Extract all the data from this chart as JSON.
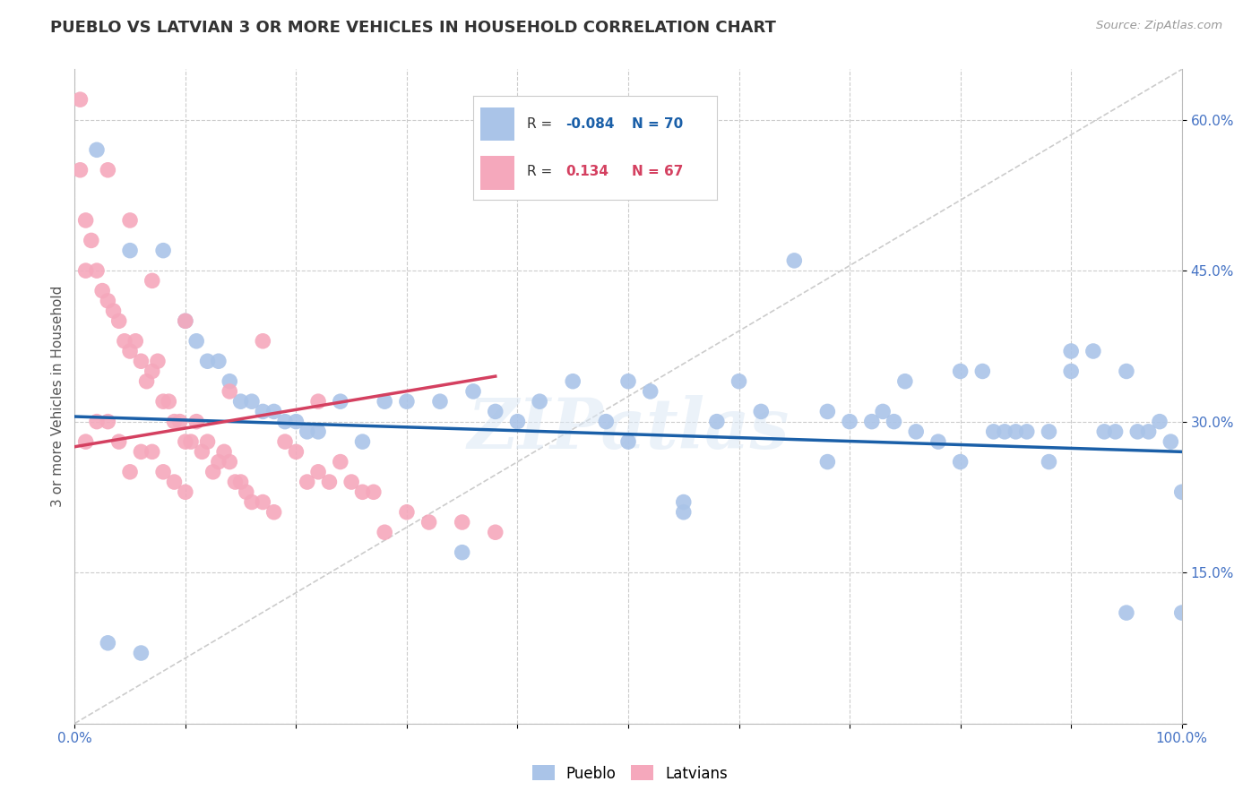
{
  "title": "PUEBLO VS LATVIAN 3 OR MORE VEHICLES IN HOUSEHOLD CORRELATION CHART",
  "source": "Source: ZipAtlas.com",
  "ylabel": "3 or more Vehicles in Household",
  "pueblo_R": -0.084,
  "pueblo_N": 70,
  "latvian_R": 0.134,
  "latvian_N": 67,
  "pueblo_color": "#aac4e8",
  "latvian_color": "#f5a8bc",
  "pueblo_line_color": "#1a5fa8",
  "latvian_line_color": "#d44060",
  "pueblo_x": [
    2,
    5,
    8,
    10,
    11,
    12,
    13,
    14,
    15,
    16,
    17,
    18,
    19,
    20,
    21,
    22,
    24,
    26,
    28,
    30,
    33,
    36,
    38,
    40,
    42,
    45,
    48,
    50,
    50,
    52,
    55,
    58,
    60,
    62,
    65,
    68,
    70,
    72,
    73,
    74,
    76,
    78,
    80,
    82,
    83,
    84,
    85,
    86,
    88,
    90,
    90,
    92,
    93,
    94,
    95,
    96,
    97,
    98,
    99,
    100,
    3,
    6,
    35,
    55,
    68,
    75,
    80,
    88,
    95,
    100
  ],
  "pueblo_y": [
    57,
    47,
    47,
    40,
    38,
    36,
    36,
    34,
    32,
    32,
    31,
    31,
    30,
    30,
    29,
    29,
    32,
    28,
    32,
    32,
    32,
    33,
    31,
    30,
    32,
    34,
    30,
    34,
    28,
    33,
    22,
    30,
    34,
    31,
    46,
    31,
    30,
    30,
    31,
    30,
    29,
    28,
    35,
    35,
    29,
    29,
    29,
    29,
    29,
    37,
    35,
    37,
    29,
    29,
    35,
    29,
    29,
    30,
    28,
    23,
    8,
    7,
    17,
    21,
    26,
    34,
    26,
    26,
    11,
    11
  ],
  "latvian_x": [
    0.5,
    0.5,
    1,
    1,
    1,
    1.5,
    2,
    2,
    2.5,
    3,
    3,
    3.5,
    4,
    4,
    4.5,
    5,
    5,
    5.5,
    6,
    6,
    6.5,
    7,
    7,
    7.5,
    8,
    8,
    8.5,
    9,
    9,
    9.5,
    10,
    10,
    10.5,
    11,
    11.5,
    12,
    12.5,
    13,
    13.5,
    14,
    14.5,
    15,
    15.5,
    16,
    17,
    18,
    19,
    20,
    21,
    22,
    23,
    24,
    25,
    26,
    27,
    28,
    30,
    32,
    35,
    38,
    22,
    17,
    14,
    10,
    7,
    5,
    3
  ],
  "latvian_y": [
    55,
    62,
    50,
    45,
    28,
    48,
    45,
    30,
    43,
    42,
    30,
    41,
    40,
    28,
    38,
    37,
    25,
    38,
    36,
    27,
    34,
    35,
    27,
    36,
    32,
    25,
    32,
    30,
    24,
    30,
    28,
    23,
    28,
    30,
    27,
    28,
    25,
    26,
    27,
    26,
    24,
    24,
    23,
    22,
    22,
    21,
    28,
    27,
    24,
    25,
    24,
    26,
    24,
    23,
    23,
    19,
    21,
    20,
    20,
    19,
    32,
    38,
    33,
    40,
    44,
    50,
    55
  ],
  "xlim": [
    0,
    100
  ],
  "ylim": [
    0,
    65
  ],
  "yticks": [
    0,
    15,
    30,
    45,
    60
  ],
  "ytick_labels": [
    "",
    "15.0%",
    "30.0%",
    "45.0%",
    "60.0%"
  ],
  "xticks": [
    0,
    10,
    20,
    30,
    40,
    50,
    60,
    70,
    80,
    90,
    100
  ],
  "xtick_labels": [
    "0.0%",
    "",
    "",
    "",
    "",
    "",
    "",
    "",
    "",
    "",
    "100.0%"
  ],
  "background_color": "#ffffff",
  "grid_color": "#cccccc",
  "watermark": "ZIPatlas",
  "pueblo_trend_x0": 0,
  "pueblo_trend_y0": 30.5,
  "pueblo_trend_x1": 100,
  "pueblo_trend_y1": 27.0,
  "latvian_trend_x0": 0,
  "latvian_trend_y0": 27.5,
  "latvian_trend_x1": 38,
  "latvian_trend_y1": 34.5
}
